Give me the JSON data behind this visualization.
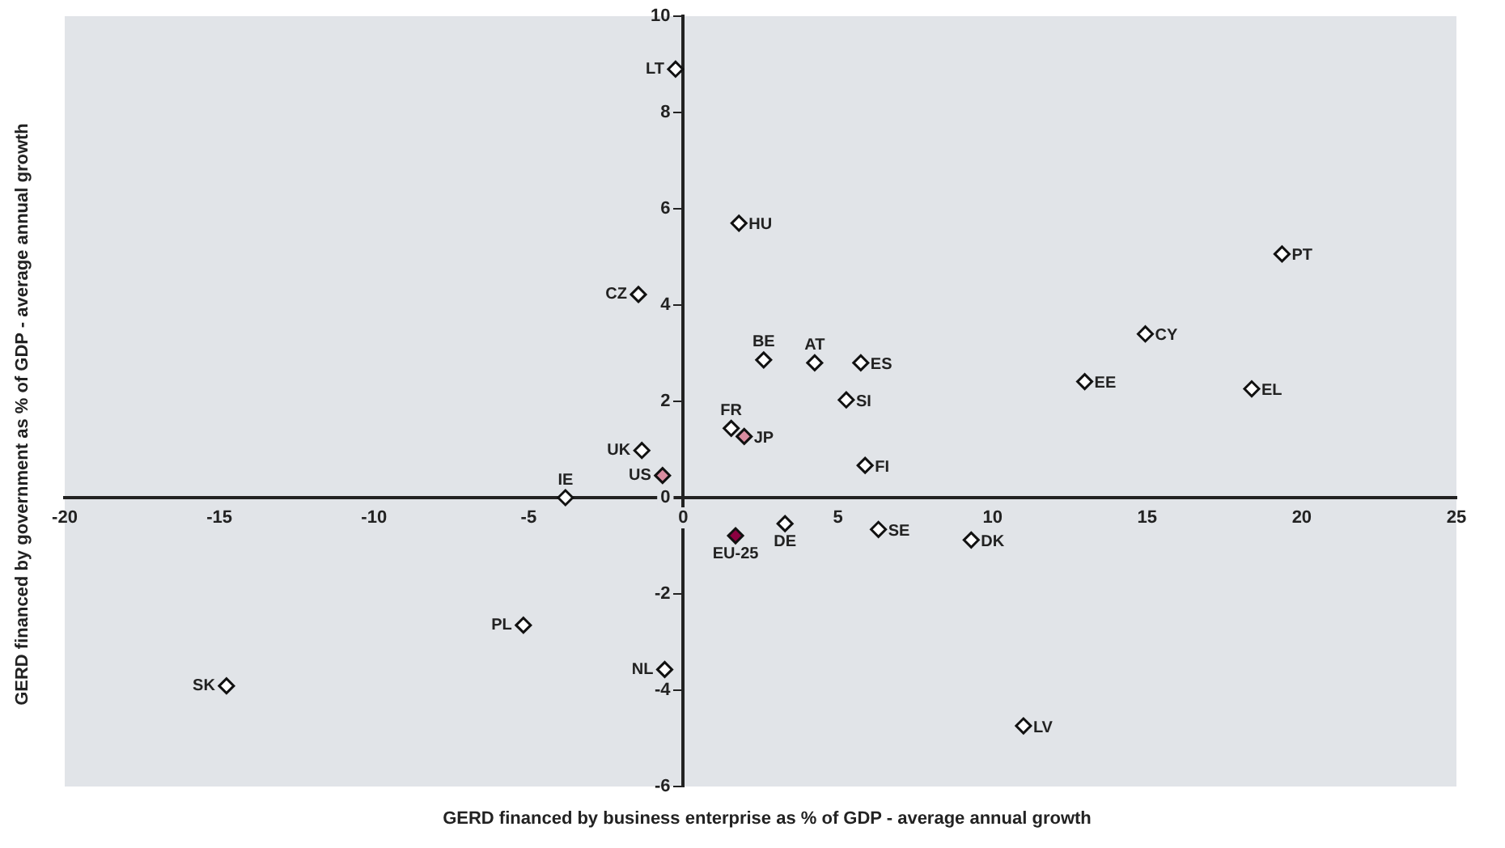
{
  "chart_data": {
    "type": "scatter",
    "xlabel": "GERD financed by business enterprise as % of GDP - average annual growth",
    "ylabel": "GERD financed by government as % of GDP - average annual growth",
    "xlim": [
      -20,
      25
    ],
    "xticks": [
      -20,
      -15,
      -10,
      -5,
      0,
      5,
      10,
      15,
      20,
      25
    ],
    "ylim": [
      -6,
      10
    ],
    "yticks": [
      -6,
      -4,
      -2,
      0,
      2,
      4,
      6,
      8,
      10
    ],
    "grid": false,
    "legend": false,
    "marker": "diamond",
    "series": [
      {
        "color": "#ffffff",
        "x": [
          -0.25,
          1.8,
          -1.45,
          2.6,
          4.25,
          5.74,
          5.27,
          1.55,
          -1.34,
          -3.81,
          5.88,
          19.36,
          14.94,
          12.98,
          18.38,
          9.31,
          -14.77,
          -5.17,
          -0.6,
          3.29,
          6.31,
          11.0
        ],
        "values": [
          8.9,
          5.7,
          4.22,
          2.86,
          2.8,
          2.8,
          2.03,
          1.44,
          0.98,
          0,
          0.67,
          5.06,
          3.4,
          2.41,
          2.26,
          -0.88,
          -3.91,
          -2.65,
          -3.57,
          -0.54,
          -0.66,
          -4.74
        ]
      },
      {
        "color": "#d98ca0",
        "x": [
          1.97,
          -0.67
        ],
        "values": [
          1.27,
          0.46
        ]
      },
      {
        "color": "#8b0040",
        "x": [
          1.69
        ],
        "values": [
          -0.79
        ]
      }
    ],
    "annotations": [
      {
        "text": "LT",
        "x": -0.25,
        "y": 8.9
      },
      {
        "text": "HU",
        "x": 1.8,
        "y": 5.7
      },
      {
        "text": "CZ",
        "x": -1.45,
        "y": 4.22
      },
      {
        "text": "BE",
        "x": 2.6,
        "y": 2.86
      },
      {
        "text": "AT",
        "x": 4.25,
        "y": 2.8
      },
      {
        "text": "ES",
        "x": 5.74,
        "y": 2.8
      },
      {
        "text": "SI",
        "x": 5.27,
        "y": 2.03
      },
      {
        "text": "FR",
        "x": 1.55,
        "y": 1.44
      },
      {
        "text": "UK",
        "x": -1.34,
        "y": 0.98
      },
      {
        "text": "IE",
        "x": -3.81,
        "y": 0
      },
      {
        "text": "FI",
        "x": 5.88,
        "y": 0.67
      },
      {
        "text": "PT",
        "x": 19.36,
        "y": 5.06
      },
      {
        "text": "CY",
        "x": 14.94,
        "y": 3.4
      },
      {
        "text": "EE",
        "x": 12.98,
        "y": 2.41
      },
      {
        "text": "EL",
        "x": 18.38,
        "y": 2.26
      },
      {
        "text": "DK",
        "x": 9.31,
        "y": -0.88
      },
      {
        "text": "SK",
        "x": -14.77,
        "y": -3.91
      },
      {
        "text": "PL",
        "x": -5.17,
        "y": -2.65
      },
      {
        "text": "NL",
        "x": -0.6,
        "y": -3.57
      },
      {
        "text": "DE",
        "x": 3.29,
        "y": -0.54
      },
      {
        "text": "SE",
        "x": 6.31,
        "y": -0.66
      },
      {
        "text": "LV",
        "x": 11.0,
        "y": -4.74
      },
      {
        "text": "JP",
        "x": 1.97,
        "y": 1.27
      },
      {
        "text": "US",
        "x": -0.67,
        "y": 0.46
      },
      {
        "text": "EU-25",
        "x": 1.69,
        "y": -0.79
      }
    ]
  }
}
